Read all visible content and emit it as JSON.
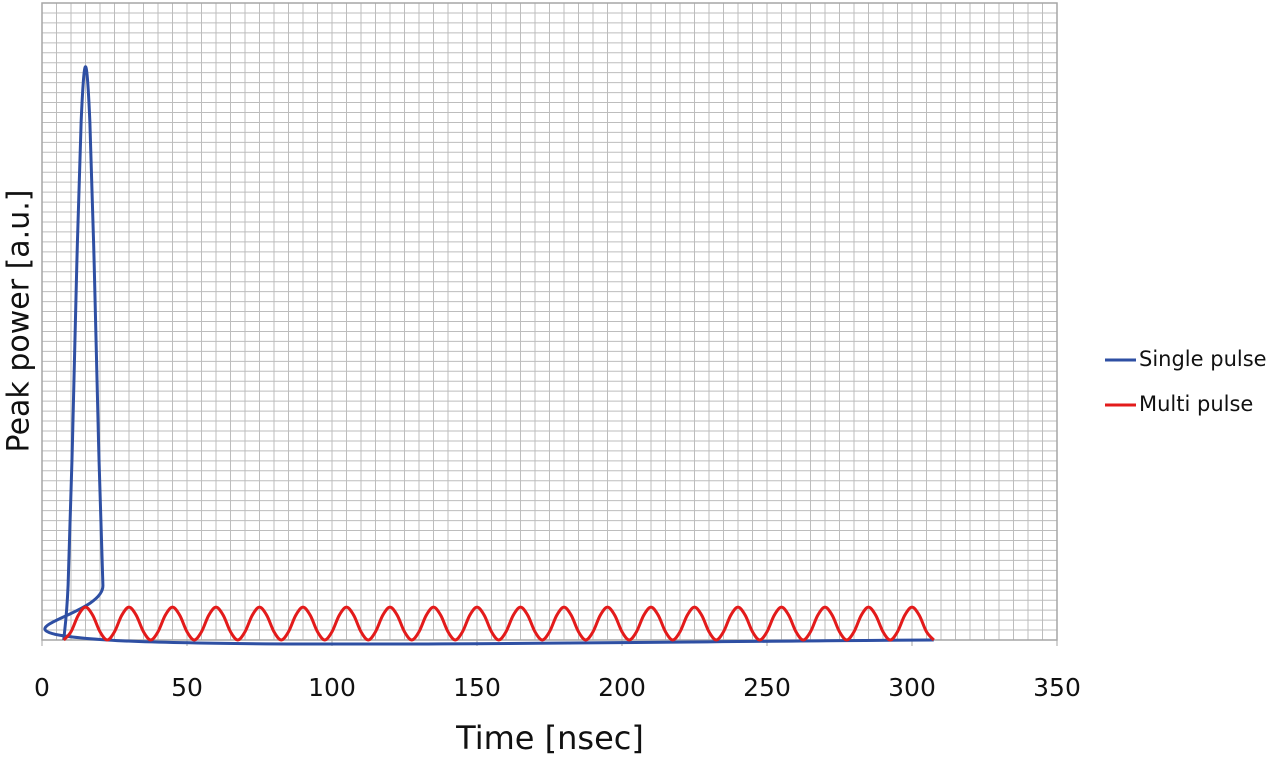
{
  "chart_data": {
    "type": "line",
    "xlabel": "Time [nsec]",
    "ylabel": "Peak power  [a.u.]",
    "xlim": [
      0,
      350
    ],
    "xticks": [
      0,
      50,
      100,
      150,
      200,
      250,
      300,
      350
    ],
    "ylim": [
      0,
      64
    ],
    "grid": true,
    "x_minor_step": 5,
    "y_grid_step": 1,
    "legend": "right",
    "series": [
      {
        "name": "Single pulse",
        "color": "#2e4fa3",
        "x": [
          7.5,
          9,
          10.5,
          12,
          13.5,
          15,
          16.5,
          18,
          19.5,
          21,
          22.5,
          307.5
        ],
        "values": [
          0,
          5.5,
          19.9,
          37.7,
          52.1,
          57.6,
          52.1,
          37.7,
          19.9,
          5.5,
          0,
          0
        ]
      },
      {
        "name": "Multi pulse",
        "color": "#e31b1b",
        "x": [
          7.5,
          10,
          12.5,
          15,
          17.5,
          20,
          22.5,
          25,
          27.5,
          30,
          32.5,
          35,
          37.5,
          40,
          42.5,
          45,
          47.5,
          50,
          52.5,
          55,
          57.5,
          60,
          62.5,
          65,
          67.5,
          70,
          72.5,
          75,
          77.5,
          80,
          82.5,
          85,
          87.5,
          90,
          92.5,
          95,
          97.5,
          100,
          102.5,
          105,
          107.5,
          110,
          112.5,
          115,
          117.5,
          120,
          122.5,
          125,
          127.5,
          130,
          132.5,
          135,
          137.5,
          140,
          142.5,
          145,
          147.5,
          150,
          152.5,
          155,
          157.5,
          160,
          162.5,
          165,
          167.5,
          170,
          172.5,
          175,
          177.5,
          180,
          182.5,
          185,
          187.5,
          190,
          192.5,
          195,
          197.5,
          200,
          202.5,
          205,
          207.5,
          210,
          212.5,
          215,
          217.5,
          220,
          222.5,
          225,
          227.5,
          230,
          232.5,
          235,
          237.5,
          240,
          242.5,
          245,
          247.5,
          250,
          252.5,
          255,
          257.5,
          260,
          262.5,
          265,
          267.5,
          270,
          272.5,
          275,
          277.5,
          280,
          282.5,
          285,
          287.5,
          290,
          292.5,
          295,
          297.5,
          300,
          302.5,
          305,
          307.5
        ],
        "values": [
          0,
          0.83,
          2.48,
          3.3,
          2.48,
          0.83,
          0,
          0.83,
          2.48,
          3.3,
          2.48,
          0.83,
          0,
          0.83,
          2.48,
          3.3,
          2.48,
          0.83,
          0,
          0.83,
          2.48,
          3.3,
          2.48,
          0.83,
          0,
          0.83,
          2.48,
          3.3,
          2.48,
          0.83,
          0,
          0.83,
          2.48,
          3.3,
          2.48,
          0.83,
          0,
          0.83,
          2.48,
          3.3,
          2.48,
          0.83,
          0,
          0.83,
          2.48,
          3.3,
          2.48,
          0.83,
          0,
          0.83,
          2.48,
          3.3,
          2.48,
          0.83,
          0,
          0.83,
          2.48,
          3.3,
          2.48,
          0.83,
          0,
          0.83,
          2.48,
          3.3,
          2.48,
          0.83,
          0,
          0.83,
          2.48,
          3.3,
          2.48,
          0.83,
          0,
          0.83,
          2.48,
          3.3,
          2.48,
          0.83,
          0,
          0.83,
          2.48,
          3.3,
          2.48,
          0.83,
          0,
          0.83,
          2.48,
          3.3,
          2.48,
          0.83,
          0,
          0.83,
          2.48,
          3.3,
          2.48,
          0.83,
          0,
          0.83,
          2.48,
          3.3,
          2.48,
          0.83,
          0,
          0.83,
          2.48,
          3.3,
          2.48,
          0.83,
          0,
          0.83,
          2.48,
          3.3,
          2.48,
          0.83,
          0,
          0.83,
          2.48,
          3.3,
          2.48,
          0.83,
          0
        ]
      }
    ]
  }
}
